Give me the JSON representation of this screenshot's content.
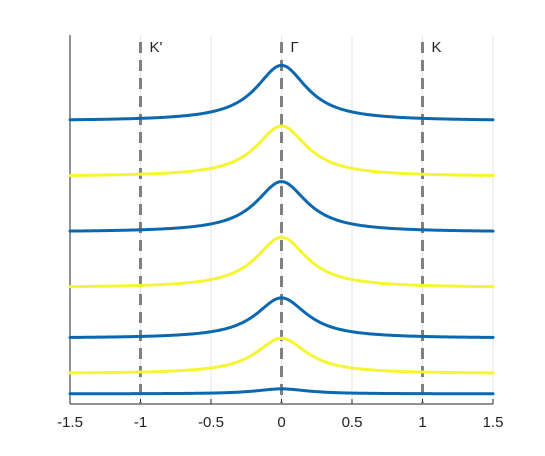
{
  "chart_data": {
    "type": "line",
    "title": "",
    "xlabel": "",
    "ylabel": "",
    "xlim": [
      -1.5,
      1.5
    ],
    "ylim": [
      0,
      7.3
    ],
    "grid": "x-only",
    "legend": "none",
    "x_ticks": [
      -1.5,
      -1,
      -0.5,
      0,
      0.5,
      1,
      1.5
    ],
    "x_tick_labels": [
      "-1.5",
      "-1",
      "-0.5",
      "0",
      "0.5",
      "1",
      "1.5"
    ],
    "colors": {
      "blue": "#0a68b0",
      "yellow": "#f5f532",
      "marker": "#808080",
      "grid": "#e6e6e6"
    },
    "vertical_markers": [
      {
        "x": -1,
        "label": "K'"
      },
      {
        "x": 0,
        "label": "Γ"
      },
      {
        "x": 1,
        "label": "K"
      }
    ],
    "curve_shape": "lorentzian",
    "curve_width": 0.22,
    "series": [
      {
        "color": "blue",
        "baseline": 0.2,
        "peak": 0.3
      },
      {
        "color": "yellow",
        "baseline": 0.6,
        "peak": 1.3
      },
      {
        "color": "blue",
        "baseline": 1.3,
        "peak": 2.1
      },
      {
        "color": "yellow",
        "baseline": 2.3,
        "peak": 3.3
      },
      {
        "color": "blue",
        "baseline": 3.4,
        "peak": 4.4
      },
      {
        "color": "yellow",
        "baseline": 4.5,
        "peak": 5.5
      },
      {
        "color": "blue",
        "baseline": 5.6,
        "peak": 6.7
      }
    ]
  }
}
